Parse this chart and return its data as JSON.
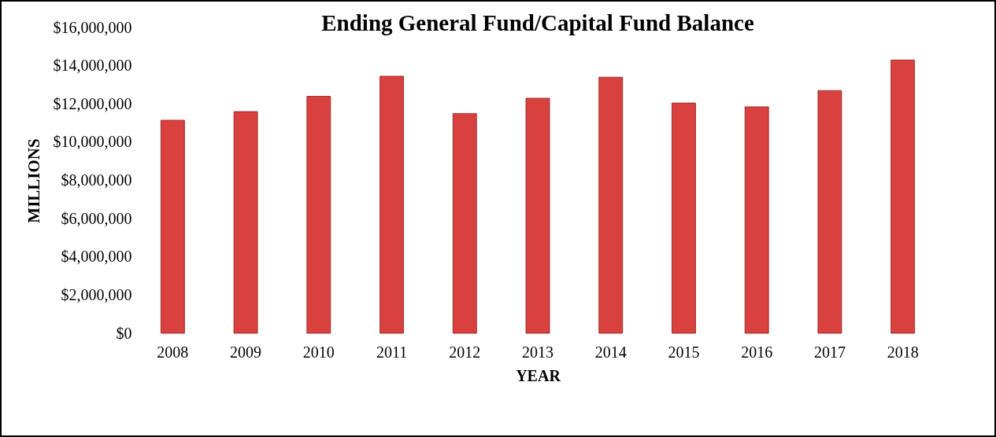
{
  "chart_data": {
    "type": "bar",
    "title": "Ending General Fund/Capital Fund Balance",
    "xlabel": "YEAR",
    "ylabel": "MILLIONS",
    "categories": [
      "2008",
      "2009",
      "2010",
      "2011",
      "2012",
      "2013",
      "2014",
      "2015",
      "2016",
      "2017",
      "2018"
    ],
    "values": [
      11150000,
      11600000,
      12400000,
      13450000,
      11500000,
      12300000,
      13400000,
      12050000,
      11850000,
      12700000,
      14300000
    ],
    "color": "#d9413f",
    "ylim": [
      0,
      16000000
    ],
    "yticks": [
      {
        "value": 0,
        "label": "$0"
      },
      {
        "value": 2000000,
        "label": "$2,000,000"
      },
      {
        "value": 4000000,
        "label": "$4,000,000"
      },
      {
        "value": 6000000,
        "label": "$6,000,000"
      },
      {
        "value": 8000000,
        "label": "$8,000,000"
      },
      {
        "value": 10000000,
        "label": "$10,000,000"
      },
      {
        "value": 12000000,
        "label": "$12,000,000"
      },
      {
        "value": 14000000,
        "label": "$14,000,000"
      },
      {
        "value": 16000000,
        "label": "$16,000,000"
      }
    ],
    "grid": false
  }
}
